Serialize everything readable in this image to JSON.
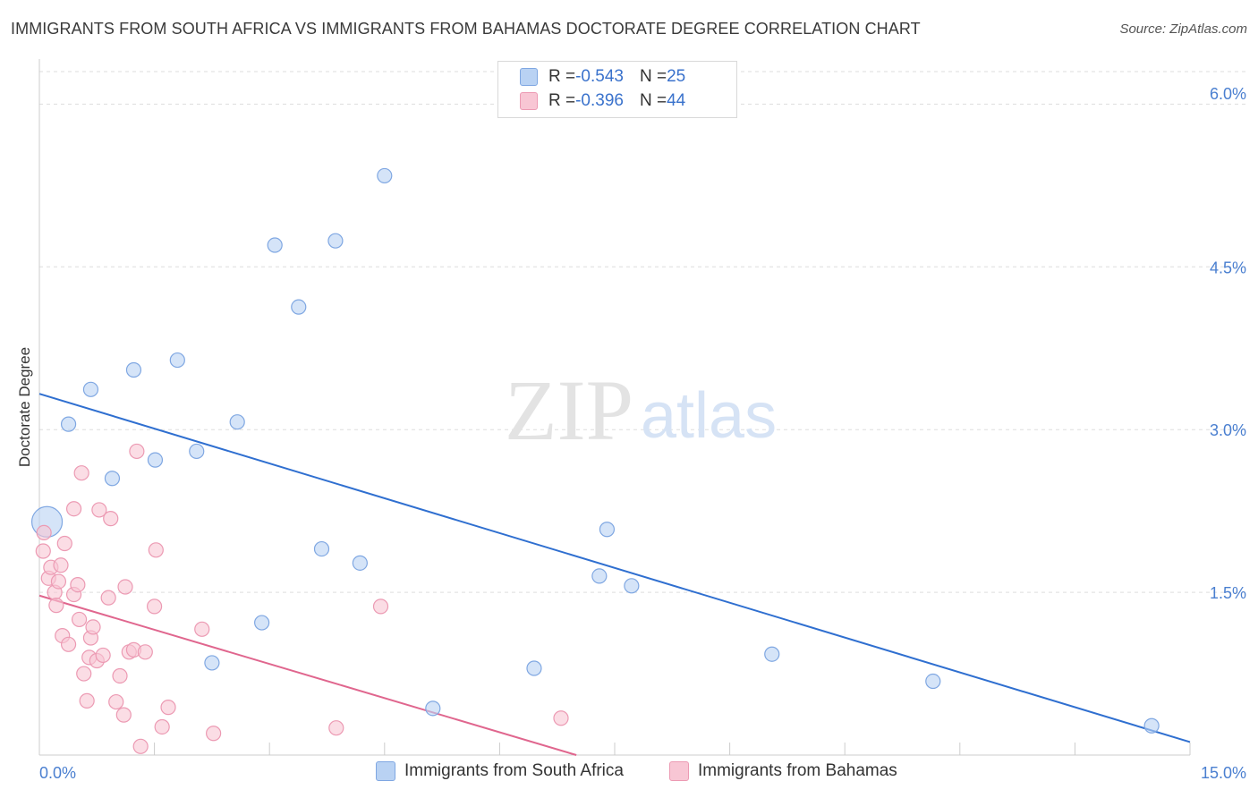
{
  "header": {
    "title": "IMMIGRANTS FROM SOUTH AFRICA VS IMMIGRANTS FROM BAHAMAS DOCTORATE DEGREE CORRELATION CHART",
    "source": "Source: ZipAtlas.com"
  },
  "watermark": {
    "zip": "ZIP",
    "atlas": "atlas"
  },
  "legend_top": {
    "rows": [
      {
        "r_label": "R = ",
        "r_value": "-0.543",
        "n_label": "N = ",
        "n_value": "25"
      },
      {
        "r_label": "R = ",
        "r_value": "-0.396",
        "n_label": "N = ",
        "n_value": "44"
      }
    ]
  },
  "legend_bottom": {
    "items": [
      {
        "label": "Immigrants from South Africa"
      },
      {
        "label": "Immigrants from Bahamas"
      }
    ]
  },
  "colors": {
    "blue_fill": "#b9d2f3",
    "blue_stroke": "#7fa7e2",
    "blue_line": "#2f6fd0",
    "pink_fill": "#f8c6d4",
    "pink_stroke": "#ec9ab3",
    "pink_line": "#e0668e",
    "axis_text": "#4a7fd0",
    "grid": "#dddddd"
  },
  "chart_data": {
    "type": "scatter",
    "title": "IMMIGRANTS FROM SOUTH AFRICA VS IMMIGRANTS FROM BAHAMAS DOCTORATE DEGREE CORRELATION CHART",
    "xlabel": "",
    "ylabel": "Doctorate Degree",
    "xlim": [
      0,
      15
    ],
    "ylim": [
      0,
      6.3
    ],
    "x_tick_labels": [
      {
        "value": 0,
        "label": "0.0%"
      },
      {
        "value": 15,
        "label": "15.0%"
      }
    ],
    "y_ticks": [
      {
        "value": 1.5,
        "label": "1.5%"
      },
      {
        "value": 3.0,
        "label": "3.0%"
      },
      {
        "value": 4.5,
        "label": "4.5%"
      },
      {
        "value": 6.0,
        "label": "6.0%"
      }
    ],
    "x_minor_ticks": [
      1.5,
      3.0,
      4.5,
      6.0,
      7.5,
      9.0,
      10.5,
      12.0,
      13.5,
      15.0
    ],
    "series": [
      {
        "name": "Immigrants from South Africa",
        "color": "blue",
        "points": [
          {
            "x": 0.1,
            "y": 2.15,
            "big": true
          },
          {
            "x": 0.38,
            "y": 3.05
          },
          {
            "x": 0.67,
            "y": 3.37
          },
          {
            "x": 0.95,
            "y": 2.55
          },
          {
            "x": 1.23,
            "y": 3.55
          },
          {
            "x": 1.51,
            "y": 2.72
          },
          {
            "x": 1.8,
            "y": 3.64
          },
          {
            "x": 2.05,
            "y": 2.8
          },
          {
            "x": 2.25,
            "y": 0.85
          },
          {
            "x": 2.58,
            "y": 3.07
          },
          {
            "x": 2.9,
            "y": 1.22
          },
          {
            "x": 3.07,
            "y": 4.7
          },
          {
            "x": 3.38,
            "y": 4.13
          },
          {
            "x": 3.68,
            "y": 1.9
          },
          {
            "x": 3.86,
            "y": 4.74
          },
          {
            "x": 4.18,
            "y": 1.77
          },
          {
            "x": 4.5,
            "y": 5.34
          },
          {
            "x": 5.13,
            "y": 0.43
          },
          {
            "x": 6.45,
            "y": 0.8
          },
          {
            "x": 7.3,
            "y": 1.65
          },
          {
            "x": 7.4,
            "y": 2.08
          },
          {
            "x": 7.72,
            "y": 1.56
          },
          {
            "x": 9.55,
            "y": 0.93
          },
          {
            "x": 11.65,
            "y": 0.68
          },
          {
            "x": 14.5,
            "y": 0.27
          }
        ],
        "trend": {
          "x1": 0,
          "y1": 3.33,
          "x2": 15,
          "y2": 0.12
        }
      },
      {
        "name": "Immigrants from Bahamas",
        "color": "pink",
        "points": [
          {
            "x": 0.05,
            "y": 1.88
          },
          {
            "x": 0.06,
            "y": 2.05
          },
          {
            "x": 0.12,
            "y": 1.63
          },
          {
            "x": 0.15,
            "y": 1.73
          },
          {
            "x": 0.2,
            "y": 1.5
          },
          {
            "x": 0.22,
            "y": 1.38
          },
          {
            "x": 0.25,
            "y": 1.6
          },
          {
            "x": 0.28,
            "y": 1.75
          },
          {
            "x": 0.3,
            "y": 1.1
          },
          {
            "x": 0.33,
            "y": 1.95
          },
          {
            "x": 0.38,
            "y": 1.02
          },
          {
            "x": 0.45,
            "y": 1.48
          },
          {
            "x": 0.45,
            "y": 2.27
          },
          {
            "x": 0.5,
            "y": 1.57
          },
          {
            "x": 0.52,
            "y": 1.25
          },
          {
            "x": 0.55,
            "y": 2.6
          },
          {
            "x": 0.58,
            "y": 0.75
          },
          {
            "x": 0.62,
            "y": 0.5
          },
          {
            "x": 0.65,
            "y": 0.9
          },
          {
            "x": 0.67,
            "y": 1.08
          },
          {
            "x": 0.7,
            "y": 1.18
          },
          {
            "x": 0.75,
            "y": 0.87
          },
          {
            "x": 0.78,
            "y": 2.26
          },
          {
            "x": 0.83,
            "y": 0.92
          },
          {
            "x": 0.9,
            "y": 1.45
          },
          {
            "x": 0.93,
            "y": 2.18
          },
          {
            "x": 1.0,
            "y": 0.49
          },
          {
            "x": 1.05,
            "y": 0.73
          },
          {
            "x": 1.1,
            "y": 0.37
          },
          {
            "x": 1.12,
            "y": 1.55
          },
          {
            "x": 1.17,
            "y": 0.95
          },
          {
            "x": 1.23,
            "y": 0.97
          },
          {
            "x": 1.27,
            "y": 2.8
          },
          {
            "x": 1.32,
            "y": 0.08
          },
          {
            "x": 1.38,
            "y": 0.95
          },
          {
            "x": 1.5,
            "y": 1.37
          },
          {
            "x": 1.52,
            "y": 1.89
          },
          {
            "x": 1.6,
            "y": 0.26
          },
          {
            "x": 1.68,
            "y": 0.44
          },
          {
            "x": 2.12,
            "y": 1.16
          },
          {
            "x": 2.27,
            "y": 0.2
          },
          {
            "x": 3.87,
            "y": 0.25
          },
          {
            "x": 4.45,
            "y": 1.37
          },
          {
            "x": 6.8,
            "y": 0.34
          }
        ],
        "trend": {
          "x1": 0,
          "y1": 1.47,
          "x2": 7.0,
          "y2": 0.0
        }
      }
    ]
  }
}
